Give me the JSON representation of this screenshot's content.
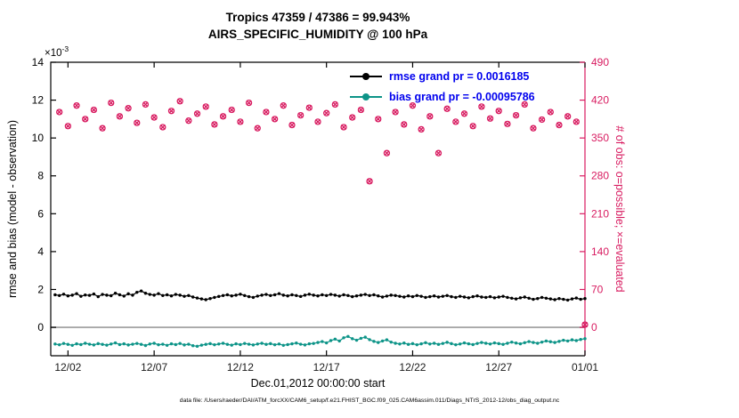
{
  "figure": {
    "title_line1": "Tropics 47359 / 47386 = 99.943%",
    "title_line2": "AIRS_SPECIFIC_HUMIDITY @ 100 hPa",
    "xlabel": "Dec.01,2012 00:00:00 start",
    "caption": "data file: /Users/raeder/DAI/ATM_forcXX/CAM6_setup/f.e21.FHIST_BGC.f09_025.CAM6assim.011/Diags_NTrS_2012-12/obs_diag_output.nc",
    "multiplier_base": "×10",
    "multiplier_exp": "-3"
  },
  "legend": {
    "rmse_label": "rmse grand pr = 0.0016185",
    "bias_label": "bias grand pr = -0.00095786",
    "text_color": "#0000ee"
  },
  "chart_data": {
    "type": "line",
    "title": [
      "Tropics 47359 / 47386 = 99.943%",
      "AIRS_SPECIFIC_HUMIDITY @ 100 hPa"
    ],
    "x_axis": {
      "label": "Dec.01,2012 00:00:00 start",
      "x_unit": "days since Dec 01 2012 00:00",
      "range_days": [
        0,
        31
      ],
      "ticks": [
        {
          "day": 1,
          "label": "12/02"
        },
        {
          "day": 6,
          "label": "12/07"
        },
        {
          "day": 11,
          "label": "12/12"
        },
        {
          "day": 16,
          "label": "12/17"
        },
        {
          "day": 21,
          "label": "12/22"
        },
        {
          "day": 26,
          "label": "12/27"
        },
        {
          "day": 31,
          "label": "01/01"
        }
      ],
      "color": "#1a1a1a"
    },
    "left_axis": {
      "label": "rmse and bias (model - observation)",
      "units_multiplier": "1e-3",
      "ylim": [
        -1.5,
        14
      ],
      "ticks": [
        0,
        2,
        4,
        6,
        8,
        10,
        12,
        14
      ],
      "color": "#000000"
    },
    "right_axis": {
      "label": "# of obs: o=possible; ×=evaluated",
      "ylim": [
        -52.5,
        490
      ],
      "ticks": [
        0,
        70,
        140,
        210,
        280,
        350,
        420,
        490
      ],
      "color": "#d81b60"
    },
    "zero_line": {
      "y": 0,
      "color": "#a8a8a8"
    },
    "grid": "off",
    "legend_position": "upper-right-inside",
    "series": [
      {
        "name": "rmse",
        "legend": "rmse grand pr = 0.0016185",
        "axis": "left",
        "color": "#000000",
        "marker": "dot",
        "x_start": 0.25,
        "x_step": 0.25,
        "values": [
          1.72,
          1.68,
          1.75,
          1.66,
          1.7,
          1.78,
          1.64,
          1.71,
          1.69,
          1.76,
          1.62,
          1.74,
          1.7,
          1.67,
          1.8,
          1.72,
          1.65,
          1.77,
          1.7,
          1.85,
          1.92,
          1.8,
          1.74,
          1.7,
          1.78,
          1.68,
          1.72,
          1.66,
          1.74,
          1.7,
          1.64,
          1.68,
          1.6,
          1.55,
          1.5,
          1.46,
          1.52,
          1.58,
          1.63,
          1.68,
          1.72,
          1.66,
          1.7,
          1.75,
          1.68,
          1.62,
          1.58,
          1.65,
          1.7,
          1.74,
          1.68,
          1.72,
          1.78,
          1.7,
          1.66,
          1.72,
          1.68,
          1.63,
          1.7,
          1.75,
          1.7,
          1.66,
          1.72,
          1.68,
          1.74,
          1.7,
          1.65,
          1.72,
          1.68,
          1.62,
          1.66,
          1.7,
          1.74,
          1.68,
          1.72,
          1.66,
          1.6,
          1.65,
          1.7,
          1.68,
          1.64,
          1.6,
          1.66,
          1.62,
          1.68,
          1.64,
          1.58,
          1.62,
          1.66,
          1.6,
          1.64,
          1.68,
          1.62,
          1.58,
          1.64,
          1.6,
          1.56,
          1.62,
          1.66,
          1.6,
          1.58,
          1.62,
          1.56,
          1.6,
          1.64,
          1.58,
          1.54,
          1.5,
          1.56,
          1.6,
          1.54,
          1.48,
          1.52,
          1.58,
          1.54,
          1.5,
          1.46,
          1.52,
          1.48,
          1.44,
          1.5,
          1.55,
          1.48,
          1.52
        ]
      },
      {
        "name": "bias",
        "legend": "bias grand pr = -0.00095786",
        "axis": "left",
        "color": "#0d9488",
        "marker": "dot",
        "x_start": 0.25,
        "x_step": 0.25,
        "values": [
          -0.88,
          -0.92,
          -0.85,
          -0.9,
          -0.95,
          -0.87,
          -0.91,
          -0.84,
          -0.89,
          -0.93,
          -0.86,
          -0.9,
          -0.94,
          -0.88,
          -0.82,
          -0.91,
          -0.87,
          -0.93,
          -0.89,
          -0.85,
          -0.9,
          -0.96,
          -0.88,
          -0.84,
          -0.92,
          -0.89,
          -0.95,
          -0.87,
          -0.91,
          -0.85,
          -0.93,
          -0.89,
          -0.97,
          -1.0,
          -0.94,
          -0.9,
          -0.86,
          -0.92,
          -0.88,
          -0.84,
          -0.9,
          -0.94,
          -0.87,
          -0.91,
          -0.85,
          -0.89,
          -0.93,
          -0.88,
          -0.84,
          -0.9,
          -0.86,
          -0.92,
          -0.88,
          -0.95,
          -0.91,
          -0.87,
          -0.83,
          -0.89,
          -0.93,
          -0.87,
          -0.85,
          -0.8,
          -0.75,
          -0.82,
          -0.7,
          -0.62,
          -0.72,
          -0.55,
          -0.48,
          -0.6,
          -0.68,
          -0.58,
          -0.52,
          -0.65,
          -0.74,
          -0.8,
          -0.72,
          -0.66,
          -0.78,
          -0.84,
          -0.88,
          -0.83,
          -0.9,
          -0.86,
          -0.92,
          -0.87,
          -0.81,
          -0.88,
          -0.84,
          -0.9,
          -0.85,
          -0.79,
          -0.86,
          -0.92,
          -0.88,
          -0.82,
          -0.87,
          -0.91,
          -0.85,
          -0.8,
          -0.84,
          -0.88,
          -0.82,
          -0.86,
          -0.9,
          -0.84,
          -0.78,
          -0.83,
          -0.87,
          -0.81,
          -0.75,
          -0.8,
          -0.84,
          -0.78,
          -0.72,
          -0.76,
          -0.8,
          -0.74,
          -0.68,
          -0.72,
          -0.66,
          -0.7,
          -0.64,
          -0.6
        ]
      },
      {
        "name": "obs_count",
        "legend": "# of obs: o=possible; ×=evaluated",
        "axis": "right",
        "color": "#d81b60",
        "marker": "o+x",
        "x_start": 0.5,
        "x_step": 0.5,
        "values": [
          398,
          372,
          410,
          385,
          402,
          368,
          415,
          390,
          405,
          378,
          412,
          388,
          370,
          400,
          418,
          382,
          395,
          408,
          375,
          390,
          402,
          380,
          415,
          368,
          398,
          385,
          410,
          374,
          392,
          406,
          380,
          396,
          412,
          370,
          388,
          402,
          270,
          385,
          322,
          398,
          375,
          410,
          366,
          390,
          322,
          404,
          380,
          395,
          372,
          408,
          386,
          400,
          376,
          392,
          412,
          368,
          384,
          398,
          374,
          390,
          380,
          5
        ]
      }
    ]
  }
}
